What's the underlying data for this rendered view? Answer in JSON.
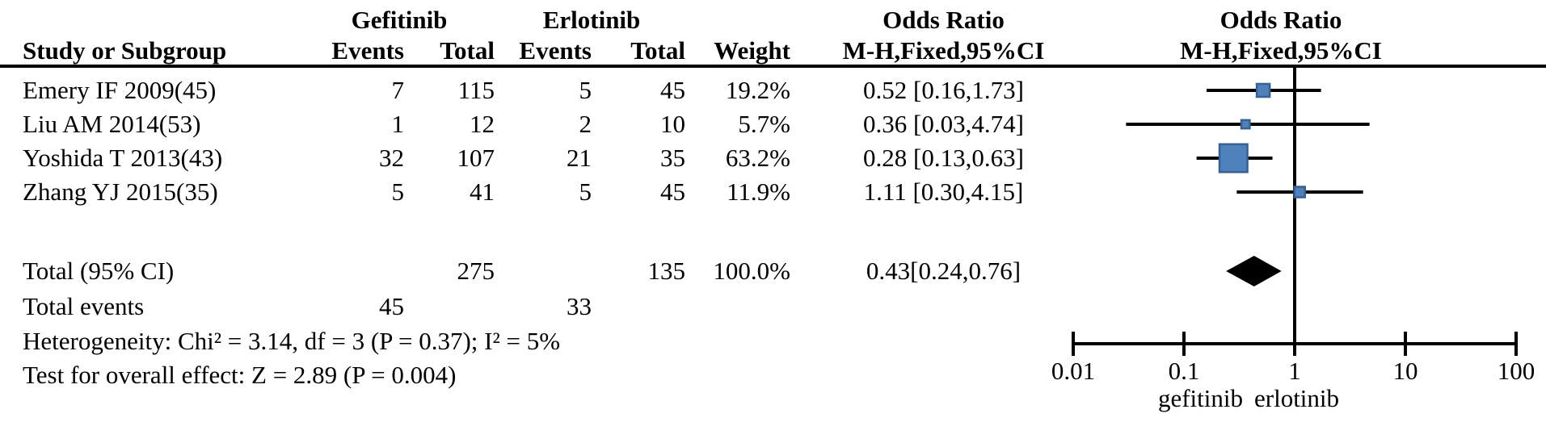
{
  "header": {
    "study_col": "Study or Subgroup",
    "group1": "Gefitinib",
    "group2": "Erlotinib",
    "events": "Events",
    "total": "Total",
    "weight": "Weight",
    "or_title": "Odds Ratio",
    "method": "M-H,Fixed,95%CI"
  },
  "rows": [
    {
      "study": "Emery IF 2009(45)",
      "g_events": "7",
      "g_total": "115",
      "e_events": "5",
      "e_total": "45",
      "weight": "19.2%",
      "or_ci": "0.52 [0.16,1.73]"
    },
    {
      "study": "Liu AM 2014(53)",
      "g_events": "1",
      "g_total": "12",
      "e_events": "2",
      "e_total": "10",
      "weight": "5.7%",
      "or_ci": "0.36 [0.03,4.74]"
    },
    {
      "study": "Yoshida T 2013(43)",
      "g_events": "32",
      "g_total": "107",
      "e_events": "21",
      "e_total": "35",
      "weight": "63.2%",
      "or_ci": "0.28 [0.13,0.63]"
    },
    {
      "study": "Zhang YJ 2015(35)",
      "g_events": "5",
      "g_total": "41",
      "e_events": "5",
      "e_total": "45",
      "weight": "11.9%",
      "or_ci": "1.11 [0.30,4.15]"
    }
  ],
  "totals": {
    "label": "Total (95% CI)",
    "g_total": "275",
    "e_total": "135",
    "weight": "100.0%",
    "or_ci": "0.43[0.24,0.76]",
    "events_label": "Total events",
    "g_events": "45",
    "e_events": "33"
  },
  "stats": {
    "heterogeneity": "Heterogeneity: Chi² = 3.14, df = 3 (P = 0.37); I² = 5%",
    "overall_effect": "Test for overall effect: Z = 2.89 (P = 0.004)"
  },
  "chart_data": {
    "type": "forest",
    "x_scale": "log10",
    "xlim": [
      0.01,
      100
    ],
    "axis_ticks": [
      0.01,
      0.1,
      1,
      10,
      100
    ],
    "axis_tick_labels": [
      "0.01",
      "0.1",
      "1",
      "10",
      "100"
    ],
    "null_line": 1,
    "favours_left_label": "gefitinib",
    "favours_right_label": "erlotinib",
    "studies": [
      {
        "name": "Emery IF 2009(45)",
        "or": 0.52,
        "ci_low": 0.16,
        "ci_high": 1.73,
        "weight_pct": 19.2
      },
      {
        "name": "Liu AM 2014(53)",
        "or": 0.36,
        "ci_low": 0.03,
        "ci_high": 4.74,
        "weight_pct": 5.7
      },
      {
        "name": "Yoshida T 2013(43)",
        "or": 0.28,
        "ci_low": 0.13,
        "ci_high": 0.63,
        "weight_pct": 63.2
      },
      {
        "name": "Zhang YJ 2015(35)",
        "or": 1.11,
        "ci_low": 0.3,
        "ci_high": 4.15,
        "weight_pct": 11.9
      }
    ],
    "total": {
      "or": 0.43,
      "ci_low": 0.24,
      "ci_high": 0.76,
      "weight_pct": 100.0
    },
    "marker_fill": "#4f81bd",
    "marker_border": "#38618f",
    "diamond_color": "#000000",
    "line_color": "#000000"
  }
}
